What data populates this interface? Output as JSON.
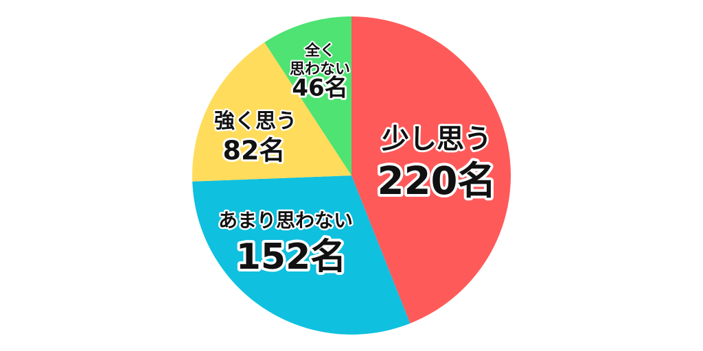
{
  "chart_data": {
    "type": "pie",
    "start": "top",
    "direction": "clockwise",
    "unit": "名",
    "slices": [
      {
        "label": "少し思う",
        "value": 220,
        "value_label": "220名",
        "color": "#FF5A5A"
      },
      {
        "label": "あまり思わない",
        "value": 152,
        "value_label": "152名",
        "color": "#0FC0DF"
      },
      {
        "label": "強く思う",
        "value": 82,
        "value_label": "82名",
        "color": "#FFDC5C"
      },
      {
        "label": "全く思わない",
        "label_lines": [
          "全く",
          "思わない"
        ],
        "value": 46,
        "value_label": "46名",
        "color": "#4EE373"
      }
    ]
  }
}
